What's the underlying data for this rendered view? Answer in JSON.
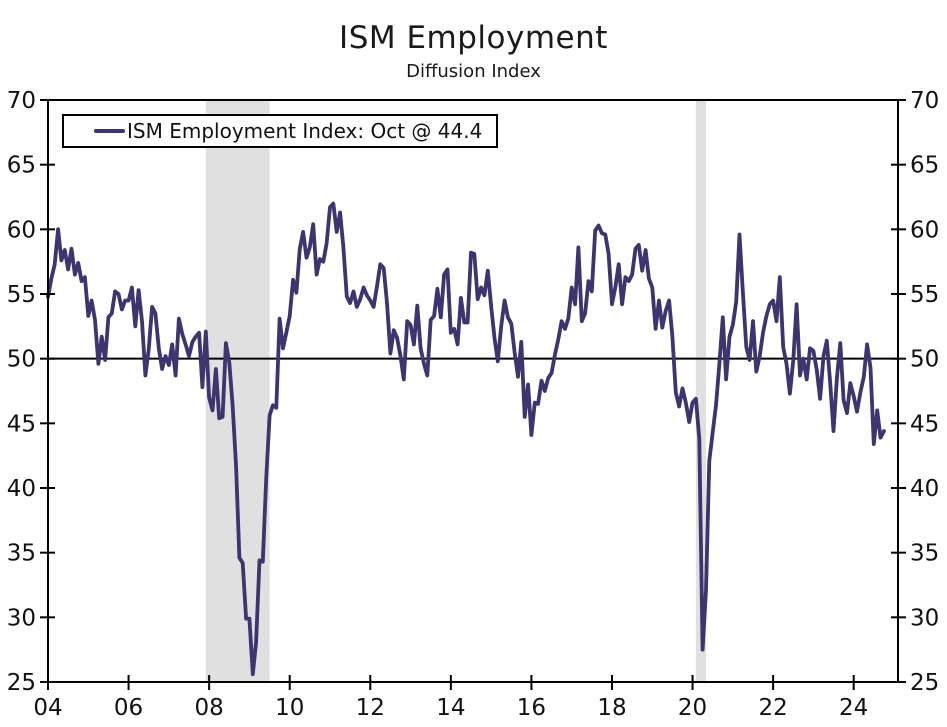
{
  "chart_data": {
    "type": "line",
    "title": "ISM Employment",
    "subtitle": "Diffusion Index",
    "legend_label": "ISM Employment Index: Oct @ 44.4",
    "latest_point": {
      "month": "Oct",
      "value": 44.4
    },
    "grid": false,
    "legend_position": "top-left",
    "ylim": [
      25,
      70
    ],
    "yticks": [
      25,
      30,
      35,
      40,
      45,
      50,
      55,
      60,
      65,
      70
    ],
    "y_axis_sides": "both",
    "x_domain": [
      2004.0,
      2025.1
    ],
    "xticks": [
      {
        "t": 2004,
        "label": "04"
      },
      {
        "t": 2006,
        "label": "06"
      },
      {
        "t": 2008,
        "label": "08"
      },
      {
        "t": 2010,
        "label": "10"
      },
      {
        "t": 2012,
        "label": "12"
      },
      {
        "t": 2014,
        "label": "14"
      },
      {
        "t": 2016,
        "label": "16"
      },
      {
        "t": 2018,
        "label": "18"
      },
      {
        "t": 2020,
        "label": "20"
      },
      {
        "t": 2022,
        "label": "22"
      },
      {
        "t": 2024,
        "label": "24"
      }
    ],
    "reference_line": 50,
    "recession_bands": [
      {
        "start": 2007.917,
        "end": 2009.5
      },
      {
        "start": 2020.083,
        "end": 2020.333
      }
    ],
    "colors": {
      "line": "#3e346e",
      "band": "#e0e0e0",
      "reference": "#000000",
      "frame": "#000000",
      "text": "#111111",
      "background": "#ffffff"
    },
    "series": [
      {
        "name": "ISM Employment Index",
        "frequency": "monthly",
        "start": "2004-01",
        "end": "2024-10",
        "values": [
          54.8,
          56.2,
          57.3,
          60.0,
          57.6,
          58.4,
          56.9,
          58.5,
          56.5,
          57.4,
          56.0,
          56.3,
          53.3,
          54.5,
          53.0,
          49.6,
          51.7,
          49.9,
          53.2,
          53.5,
          55.2,
          55.0,
          53.8,
          54.5,
          54.5,
          55.5,
          52.5,
          55.3,
          52.9,
          48.7,
          50.7,
          54.0,
          53.5,
          50.8,
          49.2,
          50.2,
          49.5,
          51.1,
          48.7,
          53.1,
          51.9,
          51.1,
          50.2,
          51.3,
          51.7,
          52.0,
          47.8,
          52.1,
          47.0,
          46.0,
          49.2,
          45.4,
          45.5,
          51.2,
          49.7,
          46.4,
          41.8,
          34.6,
          34.2,
          29.9,
          29.9,
          25.6,
          28.1,
          34.4,
          34.3,
          40.7,
          45.6,
          46.4,
          46.2,
          53.1,
          50.8,
          52.0,
          53.3,
          56.1,
          55.1,
          58.5,
          59.8,
          57.8,
          58.6,
          60.4,
          56.5,
          57.7,
          57.5,
          58.9,
          61.7,
          62.0,
          59.8,
          61.3,
          58.6,
          54.8,
          54.3,
          55.2,
          54.0,
          54.6,
          55.5,
          54.9,
          54.5,
          54.0,
          55.6,
          57.3,
          57.0,
          54.2,
          50.4,
          52.2,
          51.6,
          50.2,
          48.4,
          52.9,
          52.6,
          51.1,
          54.1,
          50.8,
          49.6,
          48.7,
          53.0,
          53.3,
          55.4,
          53.2,
          56.5,
          56.9,
          52.0,
          52.3,
          51.1,
          54.7,
          52.8,
          52.8,
          58.2,
          58.1,
          54.6,
          55.5,
          54.9,
          56.8,
          54.1,
          51.6,
          49.8,
          52.5,
          54.5,
          53.2,
          52.7,
          50.5,
          48.6,
          51.3,
          45.5,
          48.0,
          44.1,
          46.6,
          46.5,
          48.3,
          47.5,
          48.5,
          48.9,
          50.3,
          51.5,
          52.9,
          52.3,
          53.1,
          55.5,
          54.2,
          58.6,
          52.9,
          53.5,
          56.0,
          55.2,
          59.9,
          60.3,
          59.7,
          59.6,
          58.1,
          54.2,
          55.5,
          57.3,
          54.2,
          56.3,
          56.0,
          56.5,
          58.5,
          58.8,
          56.8,
          58.4,
          56.2,
          55.5,
          52.3,
          54.5,
          52.4,
          53.7,
          54.5,
          51.7,
          47.4,
          46.3,
          47.7,
          46.6,
          45.1,
          46.6,
          46.9,
          43.8,
          27.5,
          32.1,
          42.1,
          44.3,
          46.4,
          49.6,
          53.2,
          48.4,
          51.7,
          52.6,
          54.4,
          59.6,
          55.1,
          50.9,
          49.9,
          52.9,
          49.0,
          50.2,
          52.0,
          53.3,
          54.2,
          54.5,
          52.9,
          56.3,
          50.9,
          49.6,
          47.3,
          49.9,
          54.2,
          48.7,
          50.0,
          48.4,
          50.8,
          50.6,
          49.1,
          46.9,
          50.2,
          51.4,
          48.1,
          44.4,
          48.5,
          51.2,
          46.8,
          45.8,
          48.1,
          47.1,
          45.9,
          47.4,
          48.6,
          51.1,
          49.3,
          43.4,
          46.0,
          43.9,
          44.4
        ]
      }
    ]
  }
}
